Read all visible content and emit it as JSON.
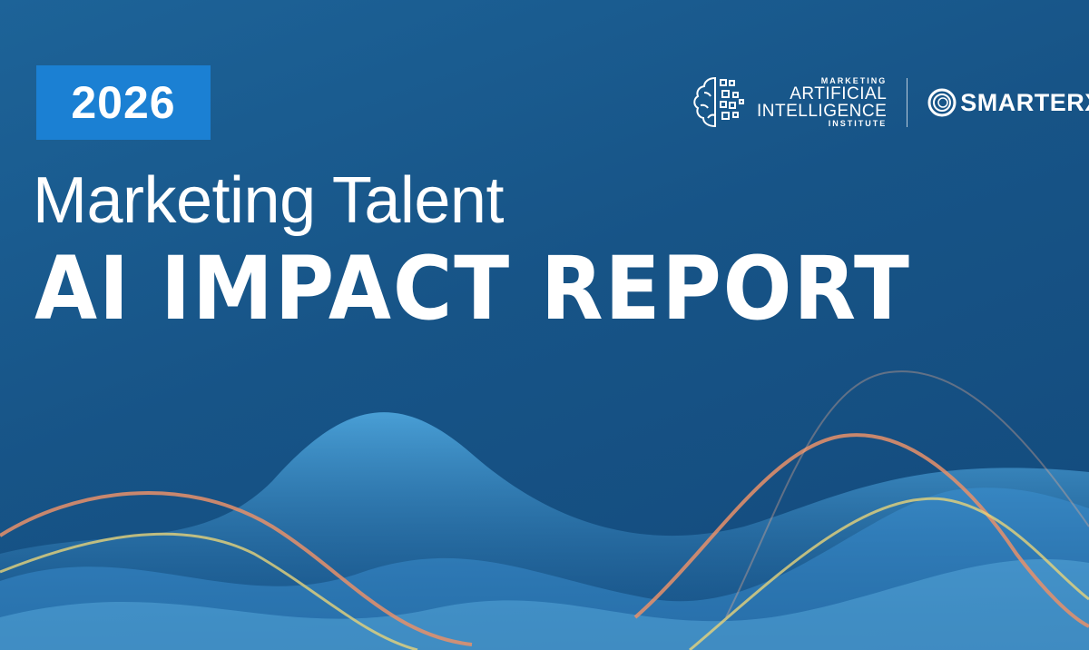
{
  "badge": {
    "year": "2026"
  },
  "title": {
    "line1": "Marketing Talent",
    "line2": "AI IMPACT REPORT"
  },
  "logos": {
    "maii": {
      "small_top": "MARKETING",
      "line1": "ARTIFICIAL",
      "line2": "INTELLIGENCE",
      "small_bottom": "INSTITUTE"
    },
    "smarterx": {
      "name": "SMARTERX"
    }
  },
  "colors": {
    "background": "#175487",
    "badge": "#1b80d3",
    "wave_orange": "#e8906a",
    "wave_yellow": "#e6d37a",
    "wave_blue": "#4aa8e8"
  }
}
